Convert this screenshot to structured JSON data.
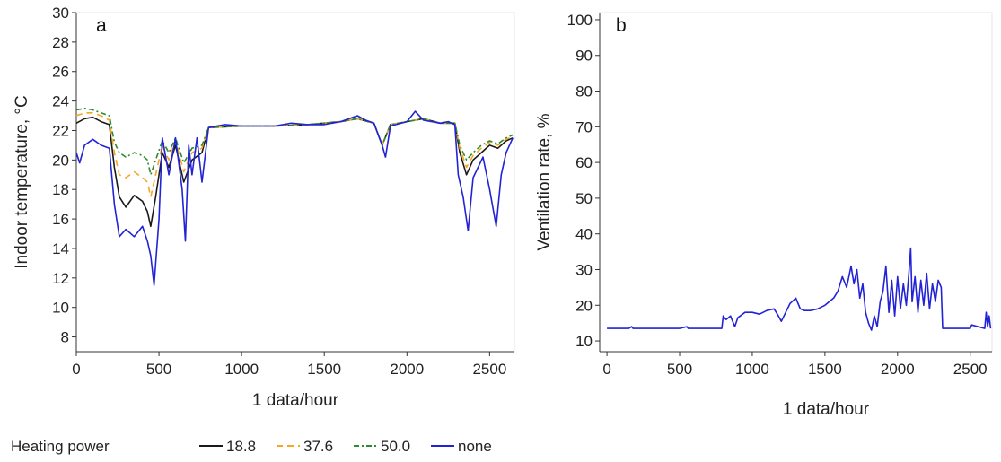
{
  "chart_data": [
    {
      "panel": "a",
      "type": "line",
      "xlabel": "1 data/hour",
      "ylabel": "Indoor temperature, °C",
      "xlim": [
        0,
        2650
      ],
      "ylim": [
        7,
        30
      ],
      "xticks": [
        0,
        500,
        1000,
        1500,
        2000,
        2500
      ],
      "yticks": [
        8,
        10,
        12,
        14,
        16,
        18,
        20,
        22,
        24,
        26,
        28,
        30
      ],
      "grid": false,
      "legend_title": "Heating power",
      "legend_position": "bottom",
      "series": [
        {
          "name": "18.8",
          "color": "#1a1a1a",
          "dash": "solid",
          "x": [
            0,
            50,
            100,
            150,
            200,
            230,
            260,
            300,
            350,
            400,
            430,
            450,
            480,
            520,
            560,
            600,
            650,
            700,
            760,
            800,
            1000,
            1200,
            1400,
            1600,
            1700,
            1800,
            1850,
            1900,
            2000,
            2100,
            2200,
            2290,
            2320,
            2360,
            2400,
            2450,
            2500,
            2550,
            2600,
            2640
          ],
          "y": [
            22.5,
            22.8,
            22.9,
            22.6,
            22.4,
            19.5,
            17.5,
            16.8,
            17.6,
            17.2,
            16.5,
            15.5,
            17.5,
            20.5,
            19.5,
            21.0,
            18.5,
            20.0,
            20.5,
            22.2,
            22.3,
            22.3,
            22.4,
            22.6,
            22.8,
            22.5,
            21.0,
            22.4,
            22.6,
            22.8,
            22.5,
            22.5,
            20.5,
            19.0,
            20.0,
            20.5,
            21.0,
            20.8,
            21.3,
            21.5
          ]
        },
        {
          "name": "37.6",
          "color": "#f5a623",
          "dash": "7,5",
          "x": [
            0,
            50,
            100,
            150,
            200,
            230,
            260,
            300,
            350,
            400,
            430,
            450,
            480,
            520,
            560,
            600,
            650,
            700,
            760,
            800,
            1000,
            1200,
            1400,
            1600,
            1700,
            1800,
            1850,
            1900,
            2000,
            2100,
            2200,
            2290,
            2320,
            2360,
            2400,
            2450,
            2500,
            2550,
            2600,
            2640
          ],
          "y": [
            23.0,
            23.2,
            23.2,
            23.0,
            22.7,
            20.5,
            19.0,
            18.8,
            19.2,
            18.8,
            18.5,
            17.5,
            19.0,
            21.0,
            20.0,
            21.3,
            19.2,
            20.5,
            20.8,
            22.2,
            22.3,
            22.3,
            22.4,
            22.6,
            22.8,
            22.5,
            21.0,
            22.4,
            22.6,
            22.8,
            22.5,
            22.5,
            20.8,
            19.5,
            20.3,
            20.8,
            21.2,
            21.0,
            21.4,
            21.6
          ]
        },
        {
          "name": "50.0",
          "color": "#2e8b2e",
          "dash": "6,3,2,3",
          "x": [
            0,
            50,
            100,
            150,
            200,
            230,
            260,
            300,
            350,
            400,
            430,
            450,
            480,
            520,
            560,
            600,
            650,
            700,
            760,
            800,
            1000,
            1200,
            1400,
            1600,
            1700,
            1800,
            1850,
            1900,
            2000,
            2100,
            2200,
            2290,
            2320,
            2360,
            2400,
            2450,
            2500,
            2550,
            2600,
            2640
          ],
          "y": [
            23.4,
            23.5,
            23.4,
            23.2,
            23.0,
            21.2,
            20.5,
            20.2,
            20.5,
            20.3,
            20.0,
            19.0,
            20.0,
            21.3,
            20.5,
            21.5,
            19.8,
            20.8,
            21.0,
            22.2,
            22.3,
            22.3,
            22.4,
            22.6,
            22.8,
            22.5,
            21.0,
            22.4,
            22.6,
            22.8,
            22.5,
            22.5,
            21.0,
            20.0,
            20.5,
            21.0,
            21.3,
            21.1,
            21.5,
            21.7
          ]
        },
        {
          "name": "none",
          "color": "#2323d6",
          "dash": "solid",
          "x": [
            0,
            20,
            50,
            100,
            150,
            200,
            230,
            260,
            300,
            350,
            400,
            430,
            450,
            470,
            500,
            520,
            560,
            600,
            640,
            660,
            680,
            700,
            730,
            760,
            800,
            900,
            1000,
            1100,
            1200,
            1300,
            1400,
            1500,
            1600,
            1650,
            1700,
            1750,
            1800,
            1850,
            1870,
            1900,
            2000,
            2050,
            2100,
            2150,
            2200,
            2250,
            2290,
            2310,
            2340,
            2370,
            2400,
            2430,
            2460,
            2500,
            2540,
            2570,
            2600,
            2640
          ],
          "y": [
            20.5,
            19.8,
            21.0,
            21.4,
            21.0,
            20.8,
            17.0,
            14.8,
            15.3,
            14.8,
            15.5,
            14.5,
            13.5,
            11.5,
            16.0,
            21.5,
            19.0,
            21.5,
            18.0,
            14.5,
            21.0,
            19.0,
            21.5,
            18.5,
            22.2,
            22.4,
            22.3,
            22.3,
            22.3,
            22.5,
            22.4,
            22.4,
            22.6,
            22.8,
            23.0,
            22.7,
            22.5,
            21.0,
            20.2,
            22.3,
            22.6,
            23.3,
            22.7,
            22.6,
            22.5,
            22.6,
            22.4,
            19.0,
            17.5,
            15.2,
            18.8,
            19.5,
            20.2,
            18.0,
            15.5,
            19.0,
            20.5,
            21.5
          ]
        }
      ]
    },
    {
      "panel": "b",
      "type": "line",
      "xlabel": "1 data/hour",
      "ylabel": "Ventilation rate, %",
      "xlim": [
        -50,
        2650
      ],
      "ylim": [
        7,
        102
      ],
      "xticks": [
        0,
        500,
        1000,
        1500,
        2000,
        2500
      ],
      "yticks": [
        10,
        20,
        30,
        40,
        50,
        60,
        70,
        80,
        90,
        100
      ],
      "grid": false,
      "series": [
        {
          "name": "none",
          "color": "#2323d6",
          "x": [
            0,
            150,
            170,
            180,
            500,
            550,
            560,
            790,
            800,
            820,
            850,
            870,
            880,
            900,
            950,
            1000,
            1050,
            1100,
            1150,
            1180,
            1200,
            1230,
            1260,
            1300,
            1330,
            1360,
            1400,
            1450,
            1500,
            1530,
            1560,
            1590,
            1620,
            1650,
            1680,
            1700,
            1720,
            1740,
            1760,
            1780,
            1800,
            1820,
            1840,
            1860,
            1880,
            1900,
            1920,
            1940,
            1960,
            1980,
            2000,
            2020,
            2040,
            2060,
            2080,
            2090,
            2100,
            2120,
            2140,
            2160,
            2180,
            2200,
            2220,
            2240,
            2260,
            2280,
            2300,
            2310,
            2500,
            2510,
            2600,
            2610,
            2620,
            2630,
            2640
          ],
          "y": [
            13.5,
            13.5,
            14.0,
            13.5,
            13.5,
            14.0,
            13.5,
            13.5,
            17.0,
            16.0,
            17.0,
            15.0,
            14.0,
            16.5,
            18.0,
            18.0,
            17.5,
            18.5,
            19.0,
            17.0,
            15.5,
            18.0,
            20.5,
            22.0,
            19.0,
            18.5,
            18.5,
            19.0,
            20.0,
            21.0,
            22.0,
            24.0,
            28.0,
            25.0,
            31.0,
            26.0,
            30.0,
            22.0,
            26.0,
            18.0,
            15.0,
            13.0,
            17.0,
            14.0,
            21.0,
            24.0,
            31.0,
            18.0,
            27.0,
            17.0,
            28.0,
            19.0,
            26.0,
            20.0,
            30.0,
            36.0,
            21.0,
            28.0,
            18.0,
            27.0,
            20.0,
            29.0,
            19.0,
            26.0,
            21.0,
            27.0,
            25.0,
            13.5,
            13.5,
            14.5,
            13.5,
            18.0,
            14.0,
            17.0,
            13.5
          ]
        }
      ]
    }
  ]
}
